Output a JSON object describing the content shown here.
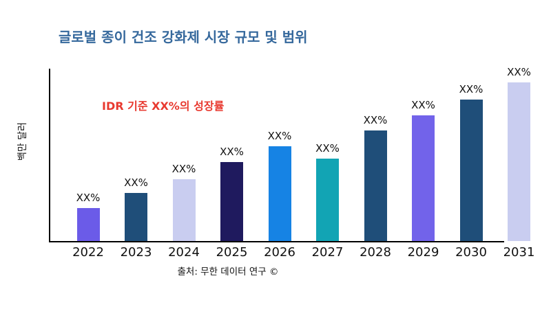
{
  "title": {
    "text": "글로벌 종이 건조 강화제 시장 규모 및 범위",
    "color": "#35689c"
  },
  "annotation": {
    "text": "IDR 기준 XX%의 성장률",
    "color": "#e8392f"
  },
  "source": "출처: 무한 데이터 연구 ©",
  "chart_data": {
    "type": "bar",
    "title": "글로벌 종이 건조 강화제 시장 규모 및 범위",
    "xlabel": "",
    "ylabel": "백만 달러",
    "categories": [
      "2022",
      "2023",
      "2024",
      "2025",
      "2026",
      "2027",
      "2028",
      "2029",
      "2030",
      "2031"
    ],
    "bar_labels": [
      "XX%",
      "XX%",
      "XX%",
      "XX%",
      "XX%",
      "XX%",
      "XX%",
      "XX%",
      "XX%",
      "XX%"
    ],
    "values": [
      19,
      28,
      36,
      46,
      55,
      48,
      64,
      73,
      82,
      92
    ],
    "ylim": [
      0,
      100
    ],
    "bar_colors": [
      "#6b5be8",
      "#1f4e79",
      "#c9cdf0",
      "#1f1a5e",
      "#1683e4",
      "#12a4b4",
      "#1f4e79",
      "#7263ea",
      "#1f4e79",
      "#c9cdf0"
    ],
    "grid": false,
    "legend": "none",
    "value_note": "bar values shown only as XX% placeholder labels; no numeric axis ticks visible"
  }
}
